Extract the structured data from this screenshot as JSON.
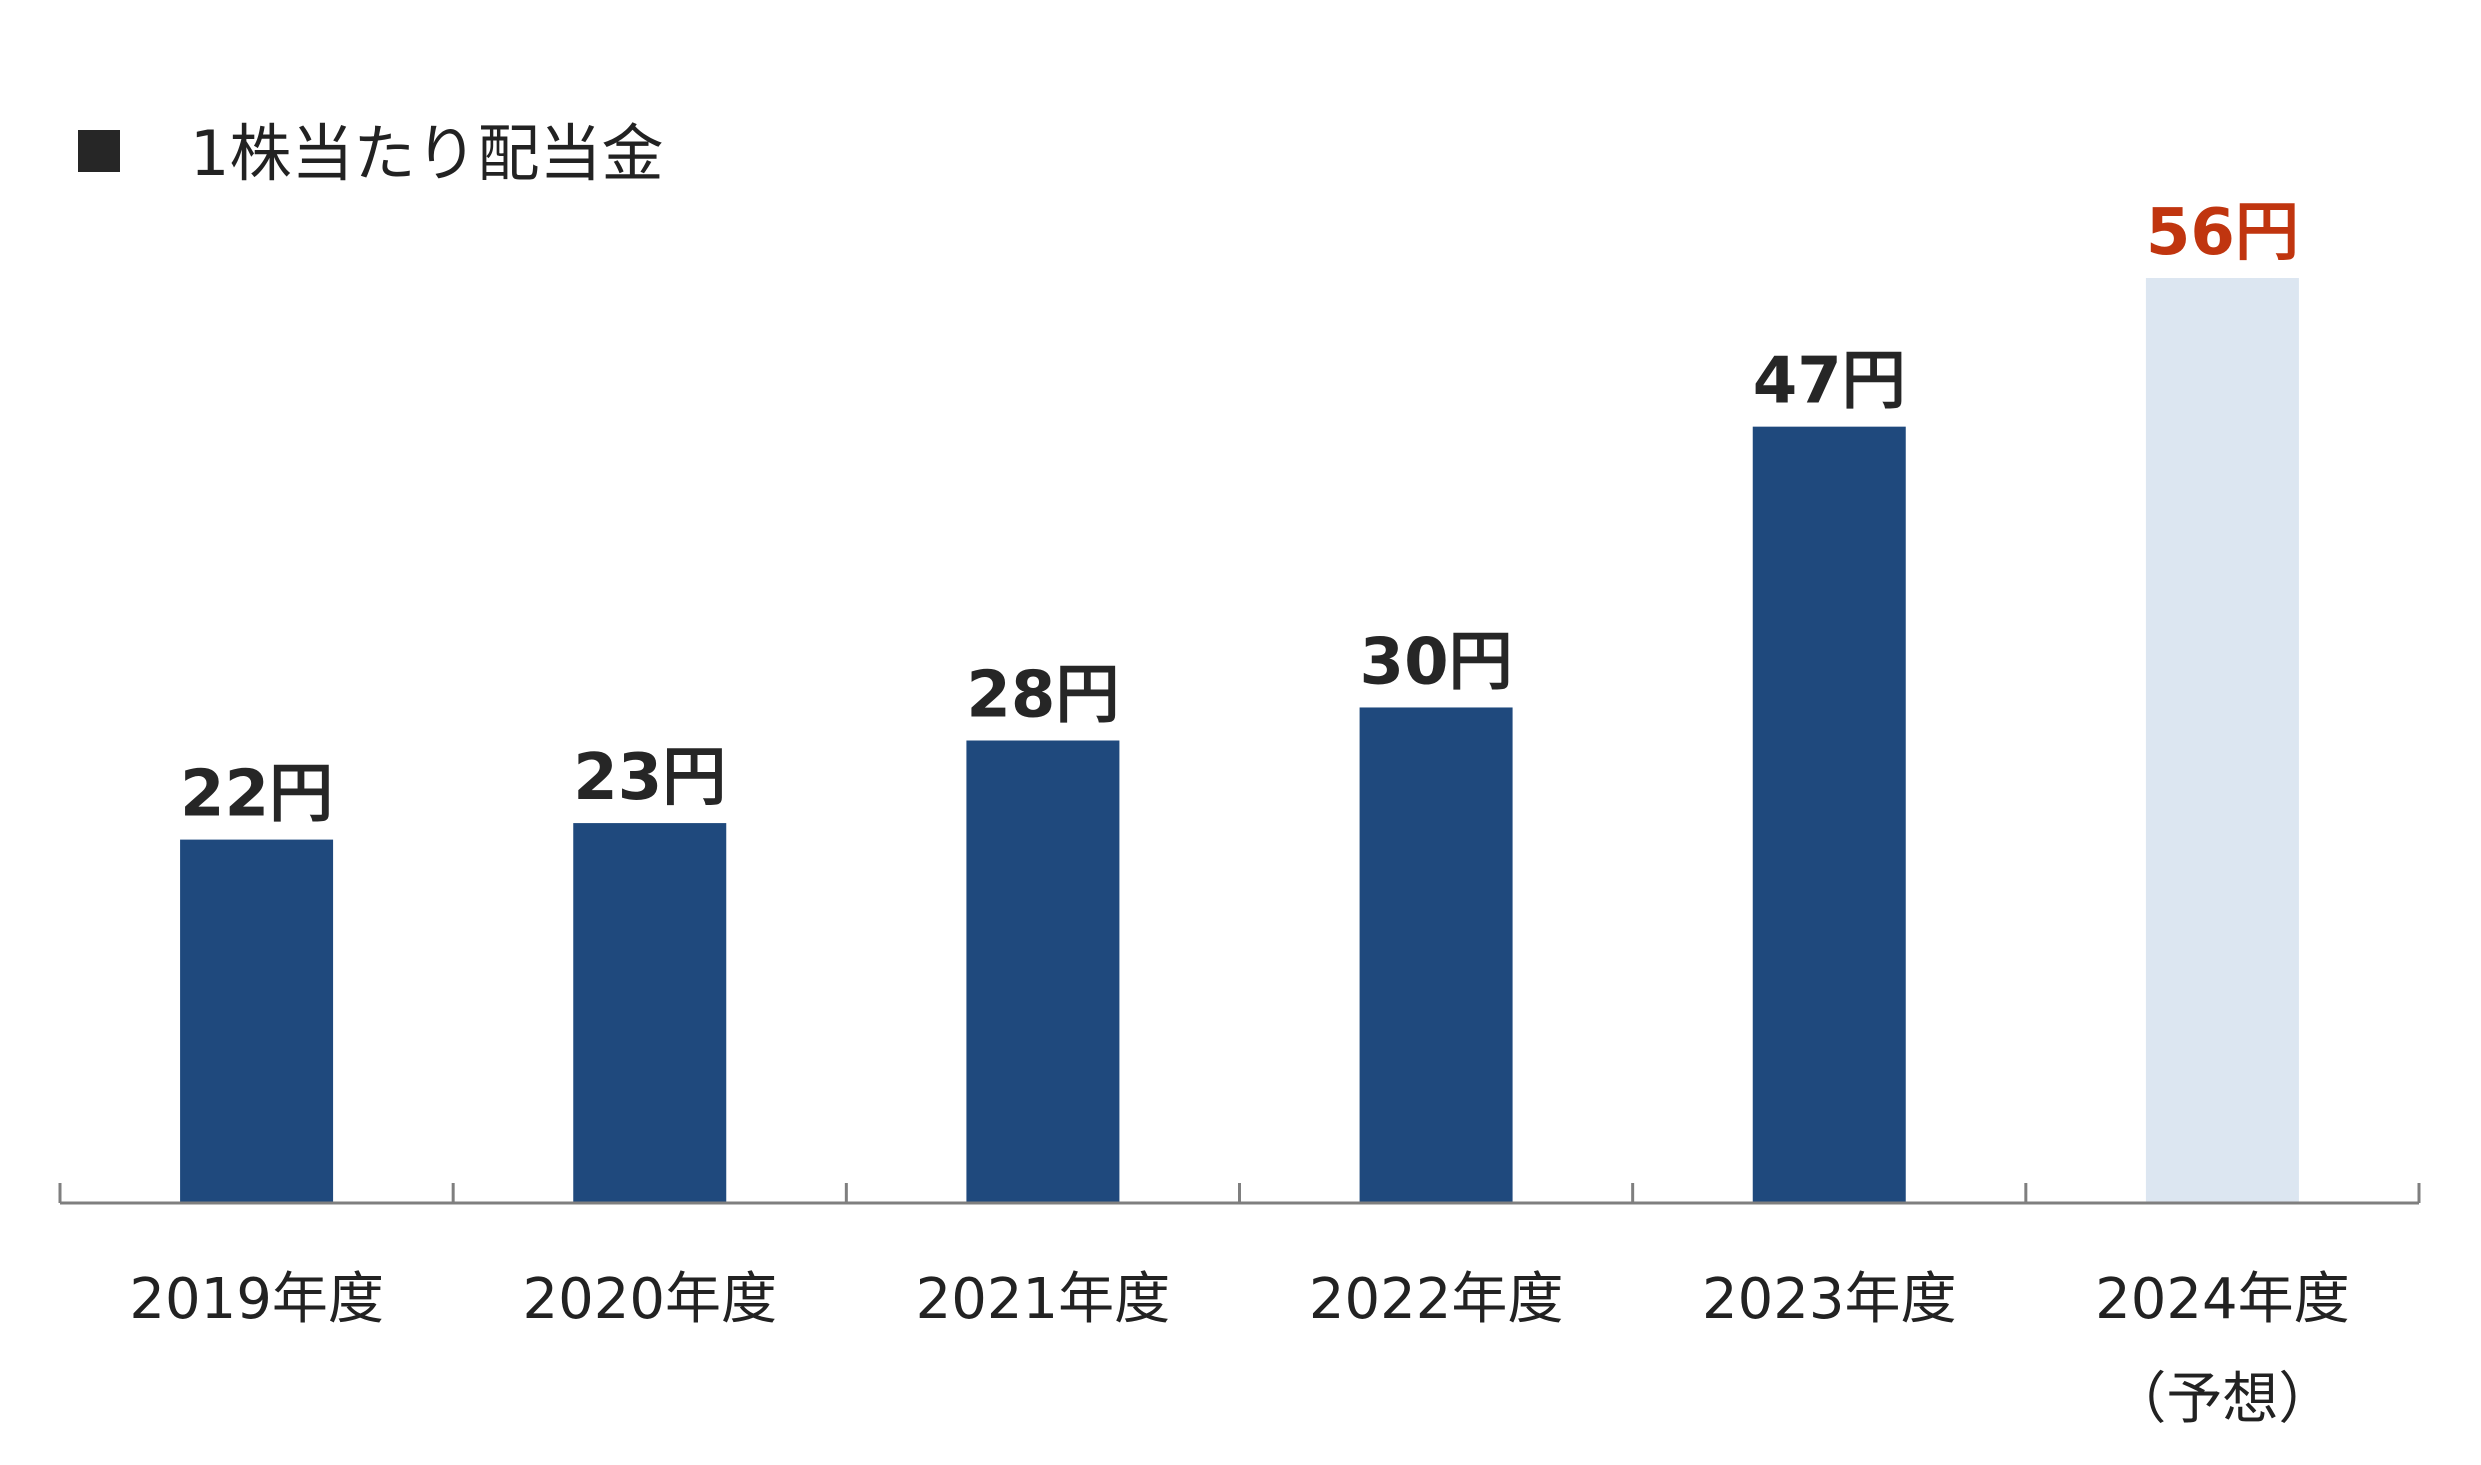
{
  "chart_data": {
    "type": "bar",
    "title": "1株当たり配当金",
    "categories": [
      "2019年度",
      "2020年度",
      "2021年度",
      "2022年度",
      "2023年度",
      "2024年度"
    ],
    "category_notes": [
      "",
      "",
      "",
      "",
      "",
      "（予想）"
    ],
    "values": [
      22,
      23,
      28,
      30,
      47,
      56
    ],
    "value_labels": [
      "22円",
      "23円",
      "28円",
      "30円",
      "47円",
      "56円"
    ],
    "unit": "円",
    "ylim": [
      0,
      56
    ],
    "grid": false,
    "legend": "none",
    "colors": {
      "actual_bar": "#1f497d",
      "forecast_bar": "#dce6f1",
      "actual_label": "#262626",
      "forecast_label": "#c0350f",
      "axis": "#7f7f7f",
      "title_marker": "#262626"
    },
    "forecast_index": 5
  }
}
